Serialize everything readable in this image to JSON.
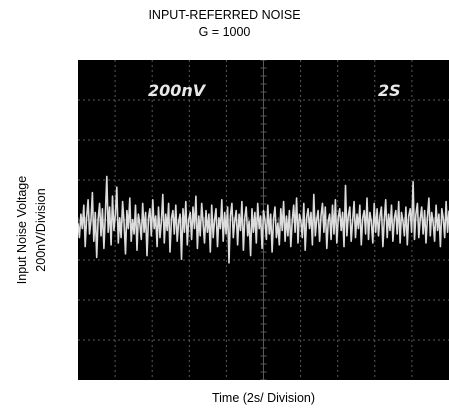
{
  "chart_data": {
    "type": "line",
    "title": "INPUT-REFERRED NOISE",
    "subtitle": "G = 1000",
    "ylabel_line1": "Input Noise Voltage",
    "ylabel_line2": "200nV/Division",
    "xlabel": "Time (2s/ Division)",
    "scope_volts_label": "200nV",
    "scope_time_label": "2S",
    "grid": true,
    "divisions_x": 10,
    "divisions_y": 8,
    "ylim_div": [
      -4,
      4
    ],
    "xlim_div": [
      0,
      10
    ],
    "trace_color": "#dcdcdc",
    "graticule_color": "#5a5a5a",
    "screen_color": "#000000",
    "series": [
      {
        "values": [
          0.05,
          -0.35,
          0.3,
          -0.1,
          0.55,
          -0.6,
          0.2,
          0.7,
          -0.25,
          0.1,
          0.9,
          -0.45,
          0.35,
          -0.9,
          0.15,
          0.6,
          -0.3,
          0.45,
          -0.65,
          0.25,
          1.35,
          -0.2,
          0.5,
          -0.55,
          0.8,
          -0.15,
          0.3,
          1.05,
          -0.5,
          0.2,
          -0.35,
          0.65,
          0.1,
          -0.8,
          0.4,
          -0.1,
          0.75,
          -0.45,
          0.15,
          -0.25,
          0.55,
          -0.7,
          0.3,
          0.05,
          -0.4,
          0.6,
          -0.2,
          0.35,
          -0.85,
          0.2,
          0.45,
          -0.3,
          0.7,
          -0.1,
          0.25,
          -0.6,
          0.5,
          -0.35,
          0.1,
          0.85,
          -0.5,
          0.3,
          -0.15,
          0.6,
          -0.75,
          0.2,
          0.4,
          -0.25,
          0.55,
          -0.45,
          0.1,
          0.3,
          -0.95,
          0.45,
          -0.2,
          0.65,
          -0.55,
          0.15,
          0.35,
          -0.4,
          0.5,
          -0.1,
          0.8,
          -0.65,
          0.25,
          -0.3,
          0.6,
          0.05,
          -0.5,
          0.4,
          -0.2,
          0.3,
          -0.75,
          0.55,
          -0.35,
          0.15,
          0.45,
          -0.6,
          0.2,
          -0.1,
          0.7,
          -0.45,
          0.35,
          -0.25,
          0.5,
          -1.05,
          0.25,
          0.6,
          -0.35,
          0.1,
          0.4,
          -0.55,
          0.3,
          -0.15,
          0.65,
          -0.7,
          0.2,
          0.5,
          -0.3,
          0.1,
          -0.85,
          0.45,
          -0.2,
          0.35,
          -0.5,
          0.6,
          -0.1,
          0.25,
          -0.65,
          0.4,
          0.15,
          -0.4,
          0.55,
          -0.25,
          0.3,
          -0.75,
          0.2,
          0.5,
          -0.35,
          0.05,
          -0.55,
          0.45,
          -0.15,
          0.65,
          -0.45,
          0.25,
          -0.3,
          0.4,
          -0.6,
          0.15,
          0.55,
          -0.2,
          0.75,
          -0.5,
          0.3,
          0.1,
          -0.35,
          0.6,
          -0.7,
          0.2,
          0.45,
          -0.1,
          0.35,
          -0.55,
          0.85,
          -0.3,
          0.15,
          0.4,
          -0.45,
          0.25,
          0.6,
          -0.2,
          0.5,
          -0.65,
          0.1,
          0.3,
          -0.4,
          0.55,
          -0.25,
          0.7,
          -0.5,
          0.2,
          0.45,
          -0.15,
          0.35,
          -0.6,
          1.1,
          -0.3,
          0.25,
          0.5,
          -0.45,
          0.15,
          0.65,
          -0.35,
          0.3,
          -0.1,
          0.55,
          -0.55,
          0.2,
          0.4,
          -0.25,
          0.75,
          -0.4,
          0.35,
          0.1,
          -0.5,
          0.6,
          -0.2,
          0.45,
          -0.3,
          0.25,
          0.5,
          -0.6,
          0.15,
          0.7,
          -0.35,
          0.3,
          -0.15,
          0.55,
          -0.45,
          0.2,
          0.4,
          -0.25,
          0.65,
          -0.5,
          0.35,
          0.1,
          -0.3,
          0.5,
          -0.55,
          0.25,
          0.45,
          -0.2,
          1.2,
          -0.4,
          0.3,
          0.6,
          -0.35,
          0.15,
          0.5,
          -0.25,
          0.4,
          -0.5,
          0.2,
          0.75,
          -0.3,
          0.35,
          0.05,
          -0.45,
          0.55,
          -0.15,
          0.3,
          -0.6,
          0.45,
          0.2,
          -0.35,
          0.65,
          -0.2,
          0.4
        ]
      }
    ]
  }
}
